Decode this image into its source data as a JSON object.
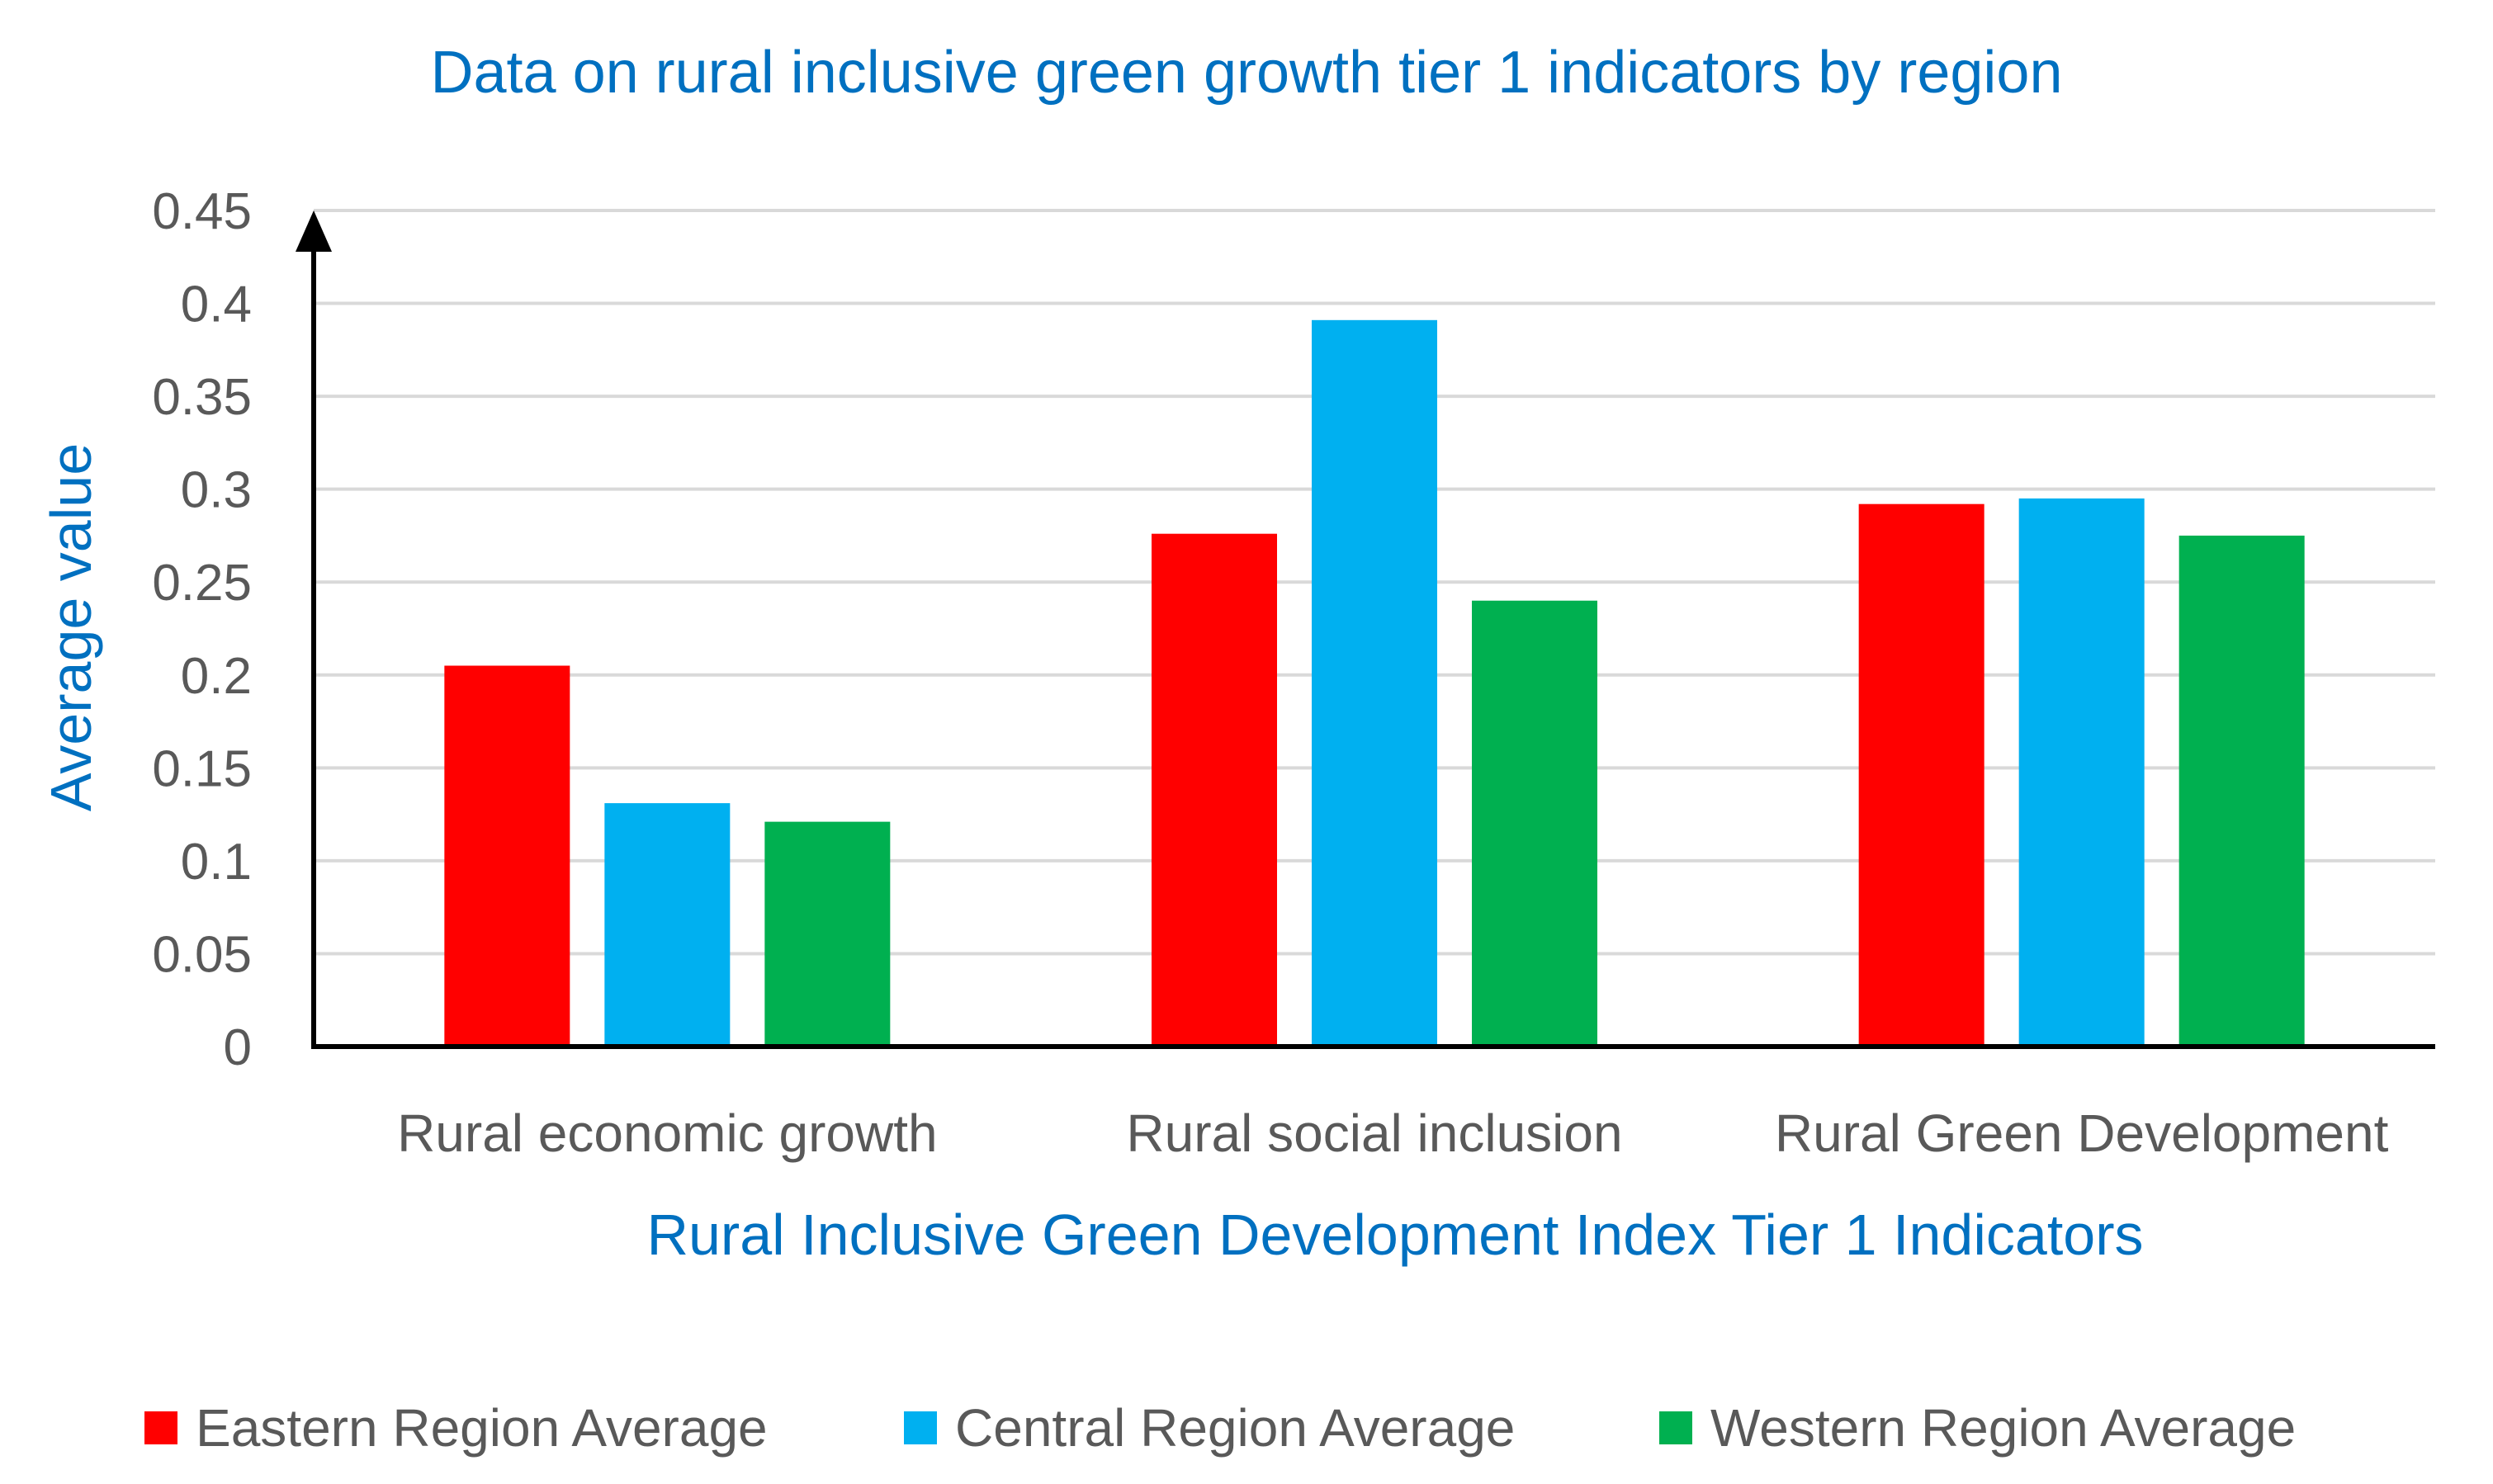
{
  "chart_data": {
    "type": "bar",
    "title": "Data on rural inclusive green growth tier 1 indicators by region",
    "xlabel": "Rural Inclusive Green Development Index Tier 1 Indicators",
    "ylabel": "Average value",
    "categories": [
      "Rural economic growth",
      "Rural social inclusion",
      "Rural Green Development"
    ],
    "series": [
      {
        "name": "Eastern Region Average",
        "color": "#FF0000",
        "values": [
          0.205,
          0.276,
          0.292
        ]
      },
      {
        "name": "Central Region Average",
        "color": "#00B0F0",
        "values": [
          0.131,
          0.391,
          0.295
        ]
      },
      {
        "name": "Western Region Average",
        "color": "#00B050",
        "values": [
          0.121,
          0.24,
          0.275
        ]
      }
    ],
    "ylim": [
      0,
      0.45
    ],
    "yticks": [
      "0",
      "0.05",
      "0.1",
      "0.15",
      "0.2",
      "0.25",
      "0.3",
      "0.35",
      "0.4",
      "0.45"
    ],
    "grid": true,
    "legend_position": "bottom"
  }
}
